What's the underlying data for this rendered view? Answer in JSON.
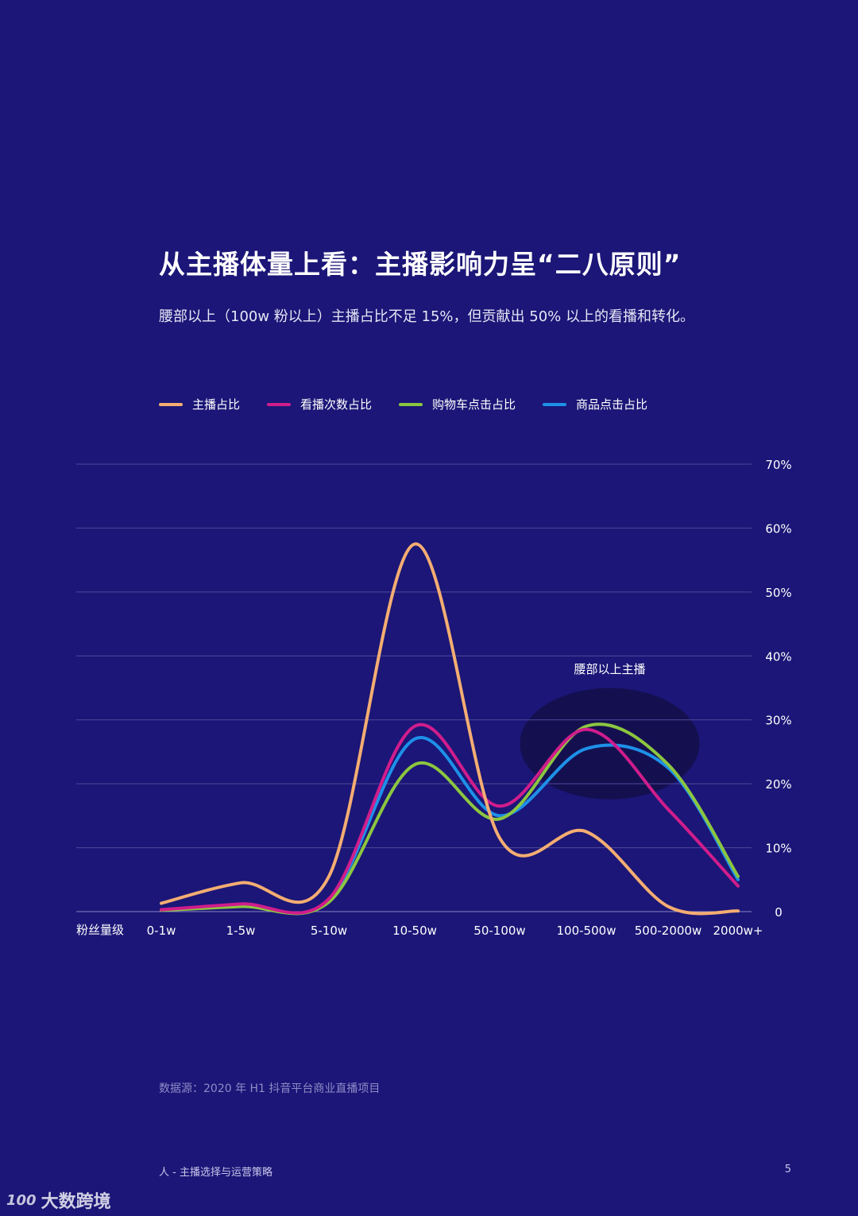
{
  "page": {
    "title": "从主播体量上看：主播影响力呈“二八原则”",
    "subtitle": "腰部以上（100w 粉以上）主播占比不足 15%，但贡献出 50% 以上的看播和转化。",
    "source": "数据源：2020 年 H1 抖音平台商业直播项目",
    "footer_left": "人 - 主播选择与运营策略",
    "page_number": "5",
    "watermark_logo": "100",
    "watermark_text": "大数跨境"
  },
  "chart_data": {
    "type": "line",
    "xlabel": "粉丝量级",
    "categories": [
      "0-1w",
      "1-5w",
      "5-10w",
      "10-50w",
      "50-100w",
      "100-500w",
      "500-2000w",
      "2000w+"
    ],
    "y_ticks": [
      "0",
      "10%",
      "20%",
      "30%",
      "40%",
      "50%",
      "60%",
      "70%"
    ],
    "ylim": [
      0,
      70
    ],
    "grid": true,
    "legend_position": "top-left",
    "annotation": "腰部以上主播",
    "series": [
      {
        "name": "主播占比",
        "color": "#f4ad72",
        "values": [
          1.3,
          4.5,
          5.5,
          57.5,
          11.5,
          12.5,
          0.8,
          0.1
        ]
      },
      {
        "name": "看播次数占比",
        "color": "#d01d8c",
        "values": [
          0.3,
          1.2,
          2.0,
          29.0,
          16.5,
          28.5,
          16.0,
          4.0
        ]
      },
      {
        "name": "购物车点击占比",
        "color": "#8cc63f",
        "values": [
          0.2,
          0.8,
          1.5,
          23.0,
          14.5,
          29.0,
          23.0,
          5.5
        ]
      },
      {
        "name": "商品点击占比",
        "color": "#1e90e8",
        "values": [
          0.2,
          1.0,
          1.8,
          27.0,
          15.0,
          25.5,
          22.5,
          5.0
        ]
      }
    ]
  }
}
